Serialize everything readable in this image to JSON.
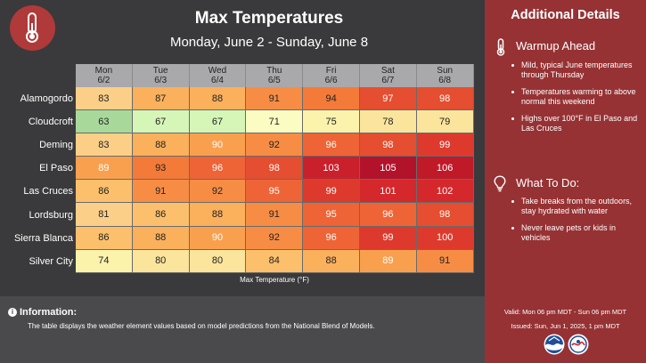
{
  "header": {
    "title": "Max Temperatures",
    "subtitle": "Monday, June 2 - Sunday, June 8",
    "icon": "thermometer-icon"
  },
  "table": {
    "days": [
      {
        "day": "Mon",
        "date": "6/2"
      },
      {
        "day": "Tue",
        "date": "6/3"
      },
      {
        "day": "Wed",
        "date": "6/4"
      },
      {
        "day": "Thu",
        "date": "6/5"
      },
      {
        "day": "Fri",
        "date": "6/6"
      },
      {
        "day": "Sat",
        "date": "6/7"
      },
      {
        "day": "Sun",
        "date": "6/8"
      }
    ],
    "rows": [
      {
        "city": "Alamogordo",
        "values": [
          "83",
          "87",
          "88",
          "91",
          "94",
          "97",
          "98"
        ]
      },
      {
        "city": "Cloudcroft",
        "values": [
          "63",
          "67",
          "67",
          "71",
          "75",
          "78",
          "79"
        ]
      },
      {
        "city": "Deming",
        "values": [
          "83",
          "88",
          "90",
          "92",
          "96",
          "98",
          "99"
        ]
      },
      {
        "city": "El Paso",
        "values": [
          "89",
          "93",
          "96",
          "98",
          "103",
          "105",
          "106"
        ]
      },
      {
        "city": "Las Cruces",
        "values": [
          "86",
          "91",
          "92",
          "95",
          "99",
          "101",
          "102"
        ]
      },
      {
        "city": "Lordsburg",
        "values": [
          "81",
          "86",
          "88",
          "91",
          "95",
          "96",
          "98"
        ]
      },
      {
        "city": "Sierra Blanca",
        "values": [
          "86",
          "88",
          "90",
          "92",
          "96",
          "99",
          "100"
        ]
      },
      {
        "city": "Silver City",
        "values": [
          "74",
          "80",
          "80",
          "84",
          "88",
          "89",
          "91"
        ]
      }
    ],
    "axis_label": "Max Temperature (°F)"
  },
  "info": {
    "title": "Information:",
    "text": "The table displays the weather element values based on model predictions from the National Blend of Models."
  },
  "sidebar": {
    "title": "Additional Details",
    "sections": [
      {
        "title": "Warmup Ahead",
        "icon": "thermometer-icon",
        "bullets": [
          "Mild, typical June temperatures through Thursday",
          "Temperatures warming to above normal this weekend",
          "Highs over 100°F in El Paso and Las Cruces"
        ]
      },
      {
        "title": "What To Do:",
        "icon": "lightbulb-icon",
        "bullets": [
          "Take breaks from the outdoors, stay hydrated with water",
          "Never leave pets or kids in vehicles"
        ]
      }
    ],
    "valid": "Valid: Mon 06 pm MDT - Sun 06 pm MDT",
    "issued": "Issued: Sun, Jun 1, 2025, 1 pm MDT",
    "logos": [
      "noaa-logo",
      "nws-logo"
    ]
  },
  "colors": {
    "main_bg": "#3a3a3c",
    "info_bg": "#4a4a4c",
    "sidebar_bg": "#963234",
    "icon_circle": "#b0393a"
  }
}
